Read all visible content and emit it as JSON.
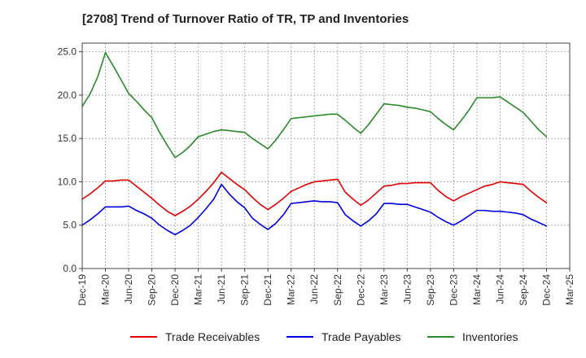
{
  "title": "[2708]  Trend of Turnover Ratio of TR, TP and Inventories",
  "chart_data": {
    "type": "line",
    "title": "[2708]  Trend of Turnover Ratio of TR, TP and Inventories",
    "xlabel": "",
    "ylabel": "",
    "ylim": [
      0,
      26
    ],
    "yticks": [
      "0.0",
      "5.0",
      "10.0",
      "15.0",
      "20.0",
      "25.0"
    ],
    "ytick_values": [
      0,
      5,
      10,
      15,
      20,
      25
    ],
    "xticks": [
      "Dec-19",
      "Mar-20",
      "Jun-20",
      "Sep-20",
      "Dec-20",
      "Mar-21",
      "Jun-21",
      "Sep-21",
      "Dec-21",
      "Mar-22",
      "Jun-22",
      "Sep-22",
      "Dec-22",
      "Mar-23",
      "Jun-23",
      "Sep-23",
      "Dec-23",
      "Mar-24",
      "Jun-24",
      "Sep-24",
      "Dec-24",
      "Mar-25"
    ],
    "grid": true,
    "legend_position": "bottom",
    "x": [
      "Dec-19",
      "Jan-20",
      "Feb-20",
      "Mar-20",
      "Apr-20",
      "May-20",
      "Jun-20",
      "Jul-20",
      "Aug-20",
      "Sep-20",
      "Oct-20",
      "Nov-20",
      "Dec-20",
      "Jan-21",
      "Feb-21",
      "Mar-21",
      "Apr-21",
      "May-21",
      "Jun-21",
      "Jul-21",
      "Aug-21",
      "Sep-21",
      "Oct-21",
      "Nov-21",
      "Dec-21",
      "Jan-22",
      "Feb-22",
      "Mar-22",
      "Apr-22",
      "May-22",
      "Jun-22",
      "Jul-22",
      "Aug-22",
      "Sep-22",
      "Oct-22",
      "Nov-22",
      "Dec-22",
      "Jan-23",
      "Feb-23",
      "Mar-23",
      "Apr-23",
      "May-23",
      "Jun-23",
      "Jul-23",
      "Aug-23",
      "Sep-23",
      "Oct-23",
      "Nov-23",
      "Dec-23",
      "Jan-24",
      "Feb-24",
      "Mar-24",
      "Apr-24",
      "May-24",
      "Jun-24",
      "Jul-24",
      "Aug-24",
      "Sep-24",
      "Oct-24",
      "Nov-24",
      "Dec-24"
    ],
    "series": [
      {
        "name": "Trade Receivables",
        "color": "#e00000",
        "values": [
          8.0,
          8.6,
          9.3,
          10.1,
          10.1,
          10.2,
          10.2,
          9.5,
          8.8,
          8.1,
          7.3,
          6.6,
          6.1,
          6.6,
          7.2,
          8.0,
          8.9,
          9.9,
          11.1,
          10.4,
          9.7,
          9.1,
          8.2,
          7.4,
          6.8,
          7.4,
          8.1,
          8.9,
          9.3,
          9.7,
          10.0,
          10.1,
          10.2,
          10.3,
          8.8,
          8.0,
          7.3,
          7.9,
          8.7,
          9.5,
          9.6,
          9.8,
          9.8,
          9.9,
          9.9,
          9.9,
          9.0,
          8.3,
          7.8,
          8.3,
          8.7,
          9.1,
          9.5,
          9.7,
          10.0,
          9.9,
          9.8,
          9.7,
          8.9,
          8.2,
          7.6
        ]
      },
      {
        "name": "Trade Payables",
        "color": "#0000dd",
        "values": [
          5.0,
          5.6,
          6.3,
          7.1,
          7.1,
          7.1,
          7.2,
          6.7,
          6.3,
          5.8,
          5.0,
          4.4,
          3.9,
          4.4,
          5.0,
          5.9,
          6.9,
          8.0,
          9.7,
          8.6,
          7.7,
          7.0,
          5.8,
          5.1,
          4.5,
          5.2,
          6.2,
          7.5,
          7.6,
          7.7,
          7.8,
          7.7,
          7.7,
          7.6,
          6.2,
          5.5,
          4.9,
          5.5,
          6.3,
          7.5,
          7.5,
          7.4,
          7.4,
          7.1,
          6.8,
          6.5,
          5.9,
          5.4,
          5.0,
          5.5,
          6.1,
          6.7,
          6.7,
          6.6,
          6.6,
          6.5,
          6.4,
          6.2,
          5.7,
          5.3,
          4.9
        ]
      },
      {
        "name": "Inventories",
        "color": "#2a8a2a",
        "values": [
          18.7,
          20.1,
          22.1,
          24.9,
          23.4,
          21.8,
          20.2,
          19.3,
          18.3,
          17.4,
          15.7,
          14.2,
          12.8,
          13.4,
          14.2,
          15.2,
          15.5,
          15.8,
          16.0,
          15.9,
          15.8,
          15.7,
          15.0,
          14.4,
          13.8,
          14.8,
          16.0,
          17.3,
          17.4,
          17.5,
          17.6,
          17.7,
          17.8,
          17.8,
          17.1,
          16.3,
          15.6,
          16.6,
          17.8,
          19.0,
          18.9,
          18.8,
          18.6,
          18.5,
          18.3,
          18.1,
          17.3,
          16.6,
          16.0,
          17.1,
          18.3,
          19.7,
          19.7,
          19.7,
          19.8,
          19.2,
          18.6,
          18.0,
          17.0,
          16.0,
          15.2
        ]
      }
    ]
  }
}
